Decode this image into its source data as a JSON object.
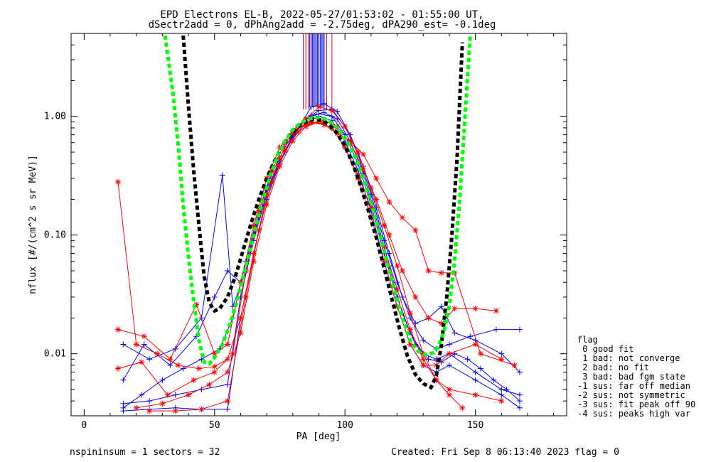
{
  "chart_data": {
    "type": "line",
    "title_line1": "EPD Electrons EL-B, 2022-05-27/01:53:02 - 01:55:00 UT,",
    "title_line2": "dSectr2add = 0, dPhAng2add = -2.75deg, dPA290_est=  -0.1deg",
    "xlabel": "PA [deg]",
    "ylabel": "nflux [#/(cm^2 s sr MeV)]",
    "xlim": [
      -5,
      185
    ],
    "ylim": [
      0.003,
      5.0
    ],
    "y_scale": "log",
    "x_ticks": [
      0,
      50,
      100,
      150
    ],
    "x_tick_labels": [
      "0",
      "50",
      "100",
      "150"
    ],
    "y_ticks": [
      0.01,
      0.1,
      1.0
    ],
    "y_tick_labels": [
      "0.01",
      "0.10",
      "1.00"
    ],
    "legend_title": "flag",
    "legend_items": [
      " 0 good fit",
      " 1 bad: not converge",
      " 2 bad: no fit",
      " 3 bad: bad fgm state",
      "-1 sus: far off median",
      "-2 sus: not symmetric",
      "-3 sus: fit peak off 90",
      "-4 sus: peaks high var"
    ],
    "series": [
      {
        "color": "#0000ff",
        "x": [
          15,
          22,
          30,
          38,
          45,
          52,
          57,
          62,
          67,
          72,
          77,
          82,
          87,
          92,
          97,
          102,
          107,
          112,
          117,
          122,
          127,
          132,
          137,
          142,
          147,
          152,
          157,
          162,
          167
        ],
        "y": [
          0.0035,
          0.0045,
          0.006,
          0.0075,
          0.009,
          0.011,
          0.02,
          0.06,
          0.16,
          0.33,
          0.55,
          0.82,
          1.02,
          1.08,
          0.95,
          0.62,
          0.33,
          0.14,
          0.055,
          0.022,
          0.012,
          0.009,
          0.0085,
          0.01,
          0.009,
          0.0075,
          0.006,
          0.005,
          0.004
        ]
      },
      {
        "color": "#0000ff",
        "x": [
          15,
          25,
          35,
          45,
          53,
          57,
          62,
          67,
          72,
          77,
          82,
          87,
          92,
          97,
          102,
          107,
          112,
          117,
          122,
          127,
          132,
          137,
          142,
          150,
          160,
          167
        ],
        "y": [
          0.012,
          0.009,
          0.011,
          0.02,
          0.32,
          0.025,
          0.05,
          0.14,
          0.3,
          0.5,
          0.78,
          1.2,
          1.28,
          1.1,
          0.7,
          0.38,
          0.17,
          0.07,
          0.03,
          0.018,
          0.02,
          0.025,
          0.015,
          0.013,
          0.01,
          0.007
        ]
      },
      {
        "color": "#0000ff",
        "x": [
          15,
          23,
          33,
          43,
          50,
          55,
          60,
          65,
          70,
          75,
          80,
          85,
          90,
          95,
          100,
          105,
          110,
          115,
          120,
          125,
          130,
          135,
          140,
          148,
          158,
          167
        ],
        "y": [
          0.006,
          0.012,
          0.008,
          0.014,
          0.03,
          0.05,
          0.04,
          0.1,
          0.24,
          0.42,
          0.68,
          0.95,
          1.12,
          1.15,
          0.82,
          0.48,
          0.22,
          0.09,
          0.04,
          0.02,
          0.013,
          0.011,
          0.012,
          0.014,
          0.016,
          0.016
        ]
      },
      {
        "color": "#0000ff",
        "x": [
          15,
          25,
          35,
          45,
          55,
          60,
          65,
          70,
          75,
          80,
          85,
          90,
          95,
          100,
          105,
          110,
          115,
          120,
          125,
          130,
          135,
          140,
          150,
          160,
          167
        ],
        "y": [
          0.0038,
          0.004,
          0.0045,
          0.005,
          0.0055,
          0.03,
          0.09,
          0.22,
          0.42,
          0.65,
          0.88,
          1.0,
          0.92,
          0.62,
          0.35,
          0.16,
          0.06,
          0.025,
          0.012,
          0.008,
          0.007,
          0.008,
          0.006,
          0.0045,
          0.0035
        ]
      },
      {
        "color": "#0000ff",
        "x": [
          15,
          25,
          35,
          45,
          55,
          60,
          65,
          70,
          75,
          80,
          85,
          90,
          95,
          100,
          105,
          110,
          115,
          120,
          125,
          130,
          135,
          140,
          150,
          160,
          167
        ],
        "y": [
          0.0033,
          0.0034,
          0.0035,
          0.0034,
          0.0034,
          0.02,
          0.07,
          0.2,
          0.4,
          0.7,
          0.95,
          1.05,
          1.0,
          0.7,
          0.4,
          0.18,
          0.07,
          0.03,
          0.015,
          0.01,
          0.009,
          0.01,
          0.007,
          0.005,
          0.0045
        ]
      },
      {
        "color": "#ff0000",
        "x": [
          13,
          20,
          28,
          36,
          44,
          50,
          55,
          60,
          65,
          70,
          75,
          80,
          85,
          90,
          95,
          100,
          105,
          110,
          115,
          120,
          125,
          130,
          135,
          140,
          145
        ],
        "y": [
          0.28,
          0.012,
          0.01,
          0.008,
          0.0075,
          0.0078,
          0.009,
          0.02,
          0.07,
          0.22,
          0.45,
          0.72,
          0.95,
          1.2,
          1.12,
          0.82,
          0.5,
          0.25,
          0.12,
          0.055,
          0.022,
          0.01,
          0.006,
          0.0045,
          0.0035
        ]
      },
      {
        "color": "#ff0000",
        "x": [
          13,
          23,
          33,
          43,
          50,
          55,
          60,
          65,
          70,
          75,
          80,
          85,
          90,
          95,
          100,
          105,
          110,
          115,
          120,
          125,
          130,
          135,
          140,
          150,
          160
        ],
        "y": [
          0.016,
          0.014,
          0.009,
          0.026,
          0.01,
          0.012,
          0.04,
          0.12,
          0.3,
          0.55,
          0.75,
          0.85,
          0.9,
          0.8,
          0.55,
          0.3,
          0.14,
          0.06,
          0.025,
          0.012,
          0.008,
          0.008,
          0.01,
          0.012,
          0.009
        ]
      },
      {
        "color": "#ff0000",
        "x": [
          13,
          22,
          32,
          42,
          50,
          57,
          62,
          67,
          72,
          77,
          82,
          87,
          92,
          97,
          102,
          107,
          112,
          117,
          122,
          127,
          132,
          137,
          142,
          152,
          165
        ],
        "y": [
          0.0075,
          0.0085,
          0.0045,
          0.006,
          0.007,
          0.01,
          0.05,
          0.16,
          0.35,
          0.6,
          0.8,
          0.9,
          0.85,
          0.72,
          0.62,
          0.48,
          0.3,
          0.19,
          0.14,
          0.11,
          0.05,
          0.048,
          0.048,
          0.01,
          0.008
        ]
      },
      {
        "color": "#ff0000",
        "x": [
          20,
          30,
          40,
          48,
          55,
          60,
          65,
          70,
          75,
          80,
          85,
          90,
          95,
          100,
          105,
          110,
          115,
          120,
          125,
          130,
          135,
          140,
          150,
          160
        ],
        "y": [
          0.0035,
          0.0038,
          0.0045,
          0.0055,
          0.007,
          0.015,
          0.06,
          0.18,
          0.38,
          0.62,
          0.82,
          0.9,
          0.8,
          0.55,
          0.32,
          0.17,
          0.08,
          0.035,
          0.016,
          0.009,
          0.006,
          0.005,
          0.0045,
          0.004
        ]
      },
      {
        "color": "#ff0000",
        "x": [
          25,
          35,
          45,
          55,
          62,
          67,
          72,
          77,
          82,
          87,
          92,
          97,
          102,
          107,
          112,
          117,
          122,
          127,
          132,
          137,
          142,
          150,
          158
        ],
        "y": [
          0.0033,
          0.0033,
          0.0034,
          0.004,
          0.03,
          0.11,
          0.28,
          0.52,
          0.74,
          0.88,
          0.92,
          0.82,
          0.6,
          0.36,
          0.2,
          0.1,
          0.05,
          0.03,
          0.02,
          0.018,
          0.024,
          0.024,
          0.023
        ]
      }
    ],
    "model_curves": [
      {
        "color": "#000000",
        "x": [
          38,
          40,
          42,
          44,
          46,
          48,
          50,
          52,
          55,
          58,
          61,
          64,
          67,
          70,
          73,
          76,
          79,
          82,
          85,
          88,
          91,
          94,
          97,
          100,
          103,
          106,
          109,
          112,
          115,
          118,
          121,
          124,
          127,
          130,
          133,
          135,
          137,
          139,
          141,
          143,
          145
        ],
        "y": [
          4.8,
          1.2,
          0.35,
          0.12,
          0.045,
          0.027,
          0.023,
          0.024,
          0.03,
          0.045,
          0.075,
          0.125,
          0.2,
          0.3,
          0.42,
          0.56,
          0.7,
          0.82,
          0.9,
          0.95,
          0.93,
          0.85,
          0.72,
          0.56,
          0.4,
          0.26,
          0.16,
          0.095,
          0.053,
          0.029,
          0.016,
          0.0095,
          0.0067,
          0.0056,
          0.0052,
          0.0065,
          0.012,
          0.03,
          0.1,
          0.45,
          4.2
        ]
      },
      {
        "color": "#00ff00",
        "x": [
          31,
          34,
          36,
          38,
          40,
          42,
          44,
          46,
          48,
          50,
          53,
          56,
          59,
          62,
          65,
          68,
          71,
          74,
          77,
          80,
          83,
          86,
          89,
          92,
          95,
          98,
          101,
          104,
          107,
          110,
          113,
          116,
          119,
          122,
          125,
          128,
          131,
          134,
          136,
          138,
          140,
          142,
          144,
          146,
          148
        ],
        "y": [
          4.8,
          1.6,
          0.6,
          0.18,
          0.065,
          0.028,
          0.013,
          0.0085,
          0.0082,
          0.0093,
          0.012,
          0.018,
          0.03,
          0.055,
          0.1,
          0.18,
          0.3,
          0.46,
          0.62,
          0.77,
          0.88,
          0.95,
          0.98,
          0.96,
          0.88,
          0.76,
          0.61,
          0.45,
          0.3,
          0.19,
          0.11,
          0.061,
          0.034,
          0.02,
          0.013,
          0.0105,
          0.0098,
          0.0102,
          0.0118,
          0.0155,
          0.025,
          0.06,
          0.2,
          0.95,
          4.8
        ]
      }
    ],
    "spike_lines": {
      "red_x": [
        84,
        85,
        86,
        88,
        90,
        92,
        93,
        95
      ],
      "blue_x": [
        86.5,
        87,
        87.5,
        88,
        88.5,
        89,
        89.5,
        90,
        90.5,
        91,
        91.5,
        92
      ]
    }
  },
  "footer": {
    "left": "nspininsum =  1  sectors = 32",
    "right": "Created: Fri Sep  8 06:13:40 2023   flag = 0"
  }
}
